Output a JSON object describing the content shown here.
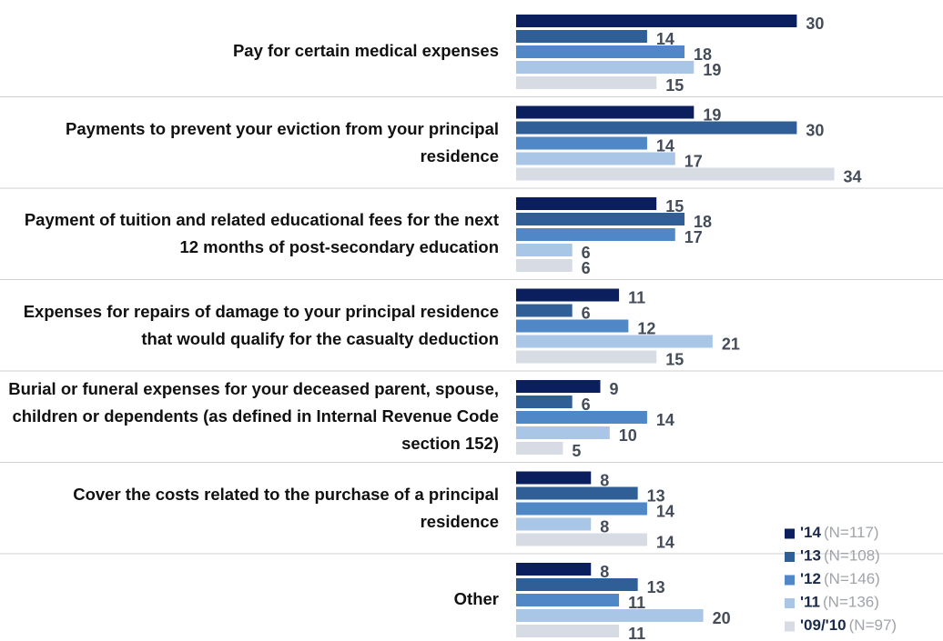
{
  "chart_data": {
    "type": "bar",
    "orientation": "horizontal",
    "categories": [
      "Pay for certain medical expenses",
      "Payments to prevent your eviction from your principal residence",
      "Payment of tuition and related educational fees for the next 12 months of post-secondary education",
      "Expenses for repairs of damage to your principal residence that would qualify for the casualty deduction",
      "Burial or funeral expenses for your deceased parent, spouse, children or dependents (as defined in Internal Revenue Code section 152)",
      "Cover the costs related to the purchase of a principal residence",
      "Other"
    ],
    "series": [
      {
        "name": "'14",
        "sample": "(N=117)",
        "color": "#0b1f5e",
        "values": [
          30,
          19,
          15,
          11,
          9,
          8,
          8
        ]
      },
      {
        "name": "'13",
        "sample": "(N=108)",
        "color": "#2f5f96",
        "values": [
          14,
          30,
          18,
          6,
          6,
          13,
          13
        ]
      },
      {
        "name": "'12",
        "sample": "(N=146)",
        "color": "#4f87c7",
        "values": [
          18,
          14,
          17,
          12,
          14,
          14,
          11
        ]
      },
      {
        "name": "'11",
        "sample": "(N=136)",
        "color": "#a9c6e7",
        "values": [
          19,
          17,
          6,
          21,
          10,
          8,
          20
        ]
      },
      {
        "name": "'09/'10",
        "sample": "(N=97)",
        "color": "#d6dbe4",
        "values": [
          15,
          34,
          6,
          15,
          5,
          14,
          11
        ]
      }
    ],
    "legend": "bottom-right"
  }
}
